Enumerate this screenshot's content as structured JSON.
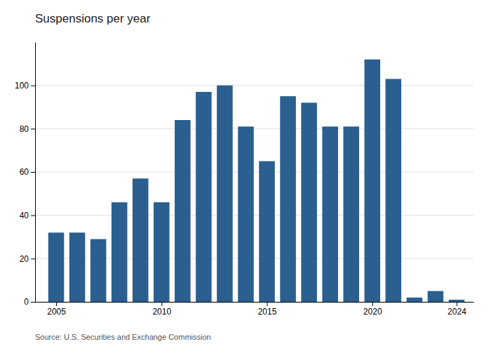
{
  "chart_data": {
    "type": "bar",
    "title": "Suspensions per year",
    "source": "Source: U.S. Securities and Exchange Commission",
    "x": [
      2005,
      2006,
      2007,
      2008,
      2009,
      2010,
      2011,
      2012,
      2013,
      2014,
      2015,
      2016,
      2017,
      2018,
      2019,
      2020,
      2021,
      2022,
      2023,
      2024
    ],
    "values": [
      32,
      32,
      29,
      46,
      57,
      46,
      84,
      97,
      100,
      81,
      65,
      95,
      92,
      81,
      81,
      112,
      103,
      2,
      5,
      1
    ],
    "color": "#2a5f8f",
    "xlim": [
      2004.0,
      2024.8
    ],
    "xticks": [
      2005,
      2010,
      2015,
      2020,
      2024
    ],
    "ylim": [
      0,
      120
    ],
    "yticks": [
      0,
      20,
      40,
      60,
      80,
      100
    ],
    "grid": true
  }
}
